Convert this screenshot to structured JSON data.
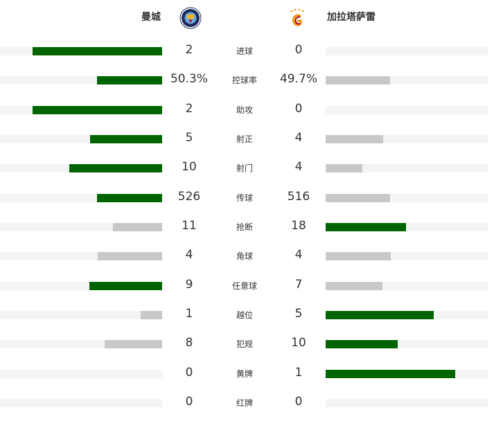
{
  "home": {
    "name": "曼城",
    "logo": "manchester-city-crest"
  },
  "away": {
    "name": "加拉塔萨雷",
    "logo": "galatasaray-crest"
  },
  "colors": {
    "leader": "#006400",
    "trailer": "#c8c8c8",
    "track": "#f4f4f4"
  },
  "stats": [
    {
      "label": "进球",
      "home": "2",
      "away": "0"
    },
    {
      "label": "控球率",
      "home": "50.3%",
      "away": "49.7%"
    },
    {
      "label": "助攻",
      "home": "2",
      "away": "0"
    },
    {
      "label": "射正",
      "home": "5",
      "away": "4"
    },
    {
      "label": "射门",
      "home": "10",
      "away": "4"
    },
    {
      "label": "传球",
      "home": "526",
      "away": "516"
    },
    {
      "label": "抢断",
      "home": "11",
      "away": "18"
    },
    {
      "label": "角球",
      "home": "4",
      "away": "4"
    },
    {
      "label": "任意球",
      "home": "9",
      "away": "7"
    },
    {
      "label": "越位",
      "home": "1",
      "away": "5"
    },
    {
      "label": "犯规",
      "home": "8",
      "away": "10"
    },
    {
      "label": "黄牌",
      "home": "0",
      "away": "1"
    },
    {
      "label": "红牌",
      "home": "0",
      "away": "0"
    }
  ]
}
